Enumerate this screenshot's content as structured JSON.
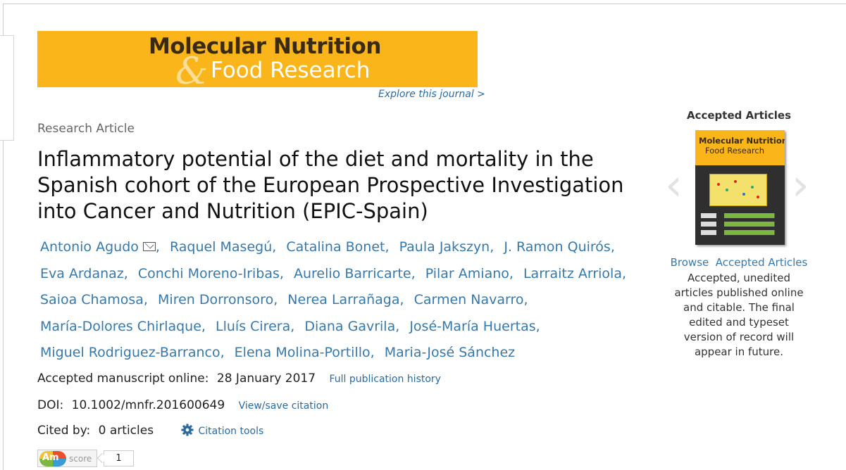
{
  "journal": {
    "banner_line1": "Molecular Nutrition",
    "banner_amp": "&",
    "banner_line2": "Food Research",
    "explore_link": "Explore this journal >"
  },
  "article": {
    "type": "Research Article",
    "title": "Inflammatory potential of the diet and mortality in the Spanish cohort of the European Prospective Investigation into Cancer and Nutrition (EPIC-Spain)",
    "authors": [
      "Antonio Agudo",
      "Raquel Masegú,",
      "Catalina Bonet,",
      "Paula Jakszyn,",
      "J. Ramon Quirós,",
      "Eva Ardanaz,",
      "Conchi Moreno-Iribas,",
      "Aurelio Barricarte,",
      "Pilar Amiano,",
      "Larraitz Arriola,",
      "Saioa Chamosa,",
      "Miren Dorronsoro,",
      "Nerea Larrañaga,",
      "Carmen Navarro,",
      "María-Dolores Chirlaque,",
      "Lluís Cirera,",
      "Diana Gavrila,",
      "José-María Huertas,",
      "Miguel Rodriguez-Barranco,",
      "Elena Molina-Portillo,",
      "Maria-José Sánchez"
    ],
    "accepted_label": "Accepted manuscript online:",
    "accepted_date": "28 January 2017",
    "history_link": "Full publication history",
    "doi_label": "DOI:",
    "doi_value": "10.1002/mnfr.201600649",
    "doi_link": "View/save citation",
    "cited_label": "Cited by:",
    "cited_value": "0 articles",
    "citation_tools": "Citation tools",
    "altmetric_logo": "Am",
    "altmetric_label": "score",
    "altmetric_score": "1"
  },
  "accepted_articles": {
    "heading": "Accepted Articles",
    "cover_line1": "Molecular Nutrition",
    "cover_line2": "Food Research",
    "browse_link": "Browse  Accepted Articles",
    "description": "Accepted, unedited articles published online and citable. The final edited and typeset version of record will appear in future."
  },
  "colors": {
    "accent": "#f9b51a",
    "link": "#3878a8"
  }
}
